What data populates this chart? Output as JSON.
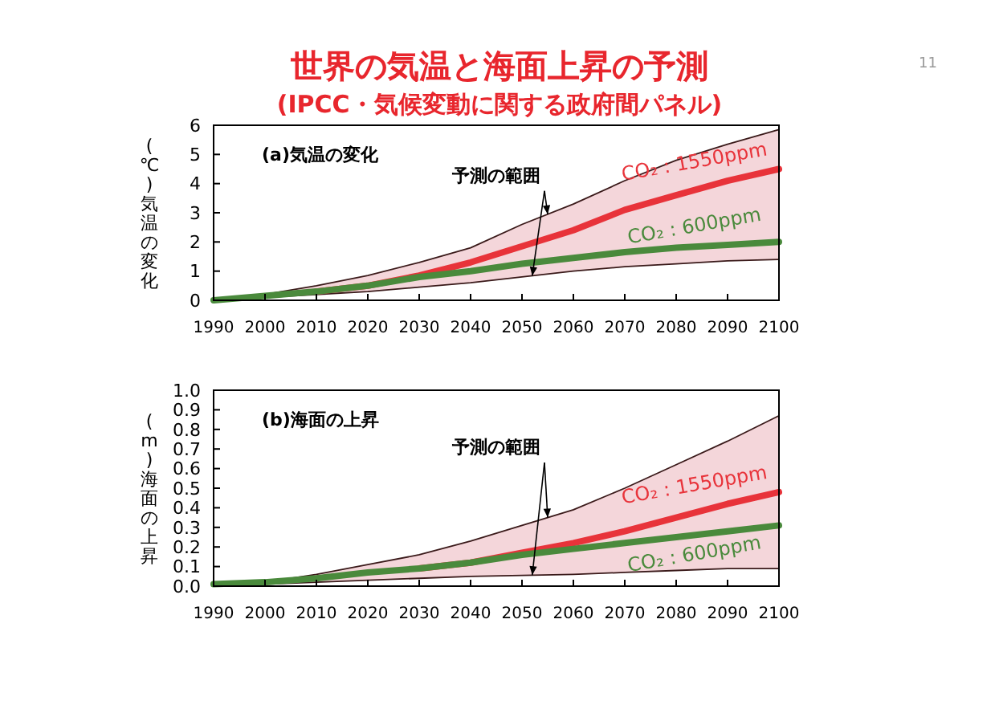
{
  "chart_data": [
    {
      "type": "line",
      "title": "世界の気温と海面上昇の予測",
      "subtitle": "(IPCC・気候変動に関する政府間パネル)",
      "ylabel": "(℃)気温の変化",
      "annotations": [
        "(a)気温の変化",
        {
          "text": "予測の範囲",
          "x": 2055,
          "y": 2.95
        },
        "11"
      ],
      "x": [
        1990,
        2000,
        2010,
        2020,
        2030,
        2040,
        2050,
        2060,
        2070,
        2080,
        2090,
        2100
      ],
      "series": [
        {
          "name": "CO₂ : 1550ppm",
          "color": "#e8333a",
          "values": [
            null,
            null,
            0.3,
            0.5,
            0.85,
            1.3,
            1.85,
            2.4,
            3.1,
            3.6,
            4.1,
            4.5
          ],
          "lower": [
            0,
            0.1,
            0.2,
            0.3,
            0.45,
            0.6,
            0.8,
            1.0,
            1.15,
            1.25,
            1.35,
            1.4
          ],
          "upper": [
            0,
            0.2,
            0.5,
            0.85,
            1.3,
            1.8,
            2.6,
            3.3,
            4.1,
            4.8,
            5.35,
            5.85
          ]
        },
        {
          "name": "CO₂ : 600ppm",
          "color": "#4a8a3c",
          "values": [
            0,
            0.15,
            0.3,
            0.5,
            0.8,
            1.0,
            1.25,
            1.45,
            1.65,
            1.8,
            1.9,
            2.0
          ]
        },
        {
          "color": "#3a1a1a",
          "values": [
            0,
            0.2,
            0.5,
            0.85,
            1.3,
            1.8,
            2.6,
            3.3,
            4.1,
            4.8,
            5.35,
            5.85
          ]
        },
        {
          "color": "#3a1a1a",
          "values": [
            0,
            0.1,
            0.2,
            0.3,
            0.45,
            0.6,
            0.8,
            1.0,
            1.15,
            1.25,
            1.35,
            1.4
          ]
        }
      ],
      "xlim": [
        1990,
        2100
      ],
      "xticks": [
        1990,
        2000,
        2010,
        2020,
        2030,
        2040,
        2050,
        2060,
        2070,
        2080,
        2090,
        2100
      ],
      "ylim": [
        0,
        6
      ],
      "yticks": [
        0,
        1,
        2,
        3,
        4,
        5,
        6
      ],
      "grid": false,
      "legend": false,
      "marker": "none",
      "line_style": "solid"
    },
    {
      "type": "line",
      "ylabel": "(m)海面の上昇",
      "annotations": [
        "(b)海面の上昇",
        {
          "text": "予測の範囲",
          "x": 2055,
          "y": 0.35
        }
      ],
      "x": [
        1990,
        2000,
        2010,
        2020,
        2030,
        2040,
        2050,
        2060,
        2070,
        2080,
        2090,
        2100
      ],
      "series": [
        {
          "name": "CO₂ : 1550ppm",
          "color": "#e8333a",
          "values": [
            null,
            null,
            null,
            null,
            0.09,
            0.12,
            0.17,
            0.22,
            0.28,
            0.35,
            0.42,
            0.48
          ],
          "lower": [
            0,
            0.01,
            0.02,
            0.03,
            0.04,
            0.05,
            0.055,
            0.06,
            0.07,
            0.08,
            0.09,
            0.09
          ],
          "upper": [
            0.01,
            0.02,
            0.06,
            0.11,
            0.16,
            0.23,
            0.31,
            0.39,
            0.5,
            0.62,
            0.74,
            0.87
          ]
        },
        {
          "name": "CO₂ : 600ppm",
          "color": "#4a8a3c",
          "values": [
            0.01,
            0.02,
            0.04,
            0.07,
            0.09,
            0.12,
            0.16,
            0.19,
            0.22,
            0.25,
            0.28,
            0.31
          ]
        },
        {
          "color": "#3a1a1a",
          "values": [
            0.01,
            0.02,
            0.06,
            0.11,
            0.16,
            0.23,
            0.31,
            0.39,
            0.5,
            0.62,
            0.74,
            0.87
          ]
        },
        {
          "color": "#3a1a1a",
          "values": [
            0,
            0.01,
            0.02,
            0.03,
            0.04,
            0.05,
            0.055,
            0.06,
            0.07,
            0.08,
            0.09,
            0.09
          ]
        }
      ],
      "xlim": [
        1990,
        2100
      ],
      "xticks": [
        1990,
        2000,
        2010,
        2020,
        2030,
        2040,
        2050,
        2060,
        2070,
        2080,
        2090,
        2100
      ],
      "ylim": [
        0,
        1
      ],
      "yticks": [
        {
          "value": 0,
          "label": "0.0"
        },
        {
          "value": 0.1,
          "label": "0.1"
        },
        {
          "value": 0.2,
          "label": "0.2"
        },
        {
          "value": 0.3,
          "label": "0.3"
        },
        {
          "value": 0.4,
          "label": "0.4"
        },
        {
          "value": 0.5,
          "label": "0.5"
        },
        {
          "value": 0.6,
          "label": "0.6"
        },
        {
          "value": 0.7,
          "label": "0.7"
        },
        {
          "value": 0.8,
          "label": "0.8"
        },
        {
          "value": 0.9,
          "label": "0.9"
        },
        {
          "value": 1,
          "label": "1.0"
        }
      ],
      "grid": false,
      "legend": false,
      "marker": "none",
      "line_style": "solid"
    }
  ]
}
